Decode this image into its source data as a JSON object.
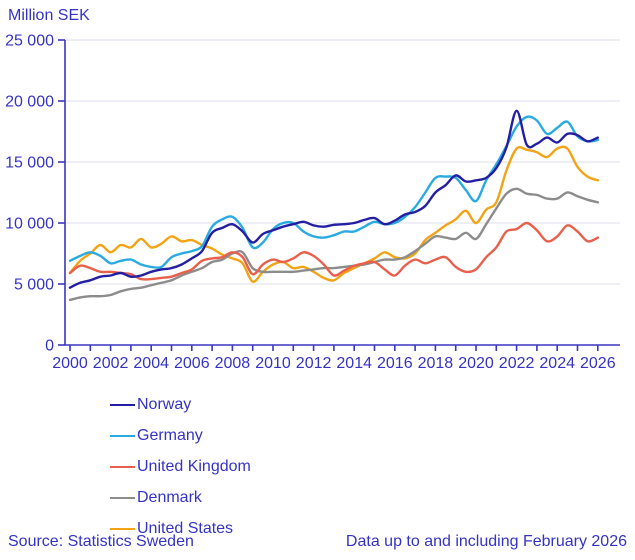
{
  "title": "Million SEK",
  "footer": {
    "source": "Source: Statistics Sweden",
    "note": "Data up to and including February 2026"
  },
  "colors": {
    "text": "#3533C4",
    "axis": "#3A36C0",
    "gridline": "#DCDCEE"
  },
  "chart_data": {
    "type": "line",
    "title": "Million SEK",
    "ylabel": "Million SEK",
    "xlabel": "",
    "ylim": [
      0,
      25000
    ],
    "ytick_interval": 5000,
    "ytick_labels": [
      "0",
      "5 000",
      "10 000",
      "15 000",
      "20 000",
      "25 000"
    ],
    "xlim": [
      2000,
      2026
    ],
    "xtick_labels": [
      "2000",
      "2002",
      "2004",
      "2006",
      "2008",
      "2010",
      "2012",
      "2014",
      "2016",
      "2018",
      "2020",
      "2022",
      "2024",
      "2026"
    ],
    "grid": "horizontal",
    "legend_position": "bottom-left",
    "x": [
      2000,
      2000.5,
      2001,
      2001.5,
      2002,
      2002.5,
      2003,
      2003.5,
      2004,
      2004.5,
      2005,
      2005.5,
      2006,
      2006.5,
      2007,
      2007.5,
      2008,
      2008.5,
      2009,
      2009.5,
      2010,
      2010.5,
      2011,
      2011.5,
      2012,
      2012.5,
      2013,
      2013.5,
      2014,
      2014.5,
      2015,
      2015.5,
      2016,
      2016.5,
      2017,
      2017.5,
      2018,
      2018.5,
      2019,
      2019.5,
      2020,
      2020.5,
      2021,
      2021.5,
      2022,
      2022.5,
      2023,
      2023.5,
      2024,
      2024.5,
      2025,
      2025.5,
      2026
    ],
    "series": [
      {
        "name": "Norway",
        "color": "#241FA2",
        "values": [
          4700,
          5100,
          5300,
          5600,
          5700,
          5900,
          5600,
          5700,
          6000,
          6200,
          6300,
          6600,
          7100,
          7700,
          9200,
          9600,
          9900,
          9300,
          8400,
          9100,
          9400,
          9700,
          9900,
          10100,
          9800,
          9700,
          9850,
          9900,
          10000,
          10250,
          10400,
          9900,
          10200,
          10700,
          10900,
          11400,
          12500,
          13100,
          13900,
          13400,
          13500,
          13700,
          14500,
          16200,
          19200,
          16400,
          16500,
          17000,
          16600,
          17300,
          17200,
          16700,
          17000
        ]
      },
      {
        "name": "Germany",
        "color": "#29ABE2",
        "values": [
          6900,
          7300,
          7600,
          7300,
          6700,
          6900,
          7000,
          6600,
          6400,
          6400,
          7200,
          7500,
          7700,
          8100,
          9700,
          10300,
          10500,
          9600,
          8000,
          8400,
          9500,
          10000,
          10000,
          9300,
          8900,
          8800,
          9000,
          9300,
          9300,
          9700,
          10100,
          9900,
          10000,
          10500,
          11300,
          12500,
          13700,
          13800,
          13700,
          12700,
          11800,
          13500,
          14800,
          16300,
          17900,
          18700,
          18400,
          17300,
          17800,
          18300,
          17100,
          16700,
          16800
        ]
      },
      {
        "name": "United Kingdom",
        "color": "#E8604C",
        "values": [
          5900,
          6500,
          6300,
          6000,
          6000,
          5900,
          5800,
          5400,
          5400,
          5500,
          5600,
          5900,
          6200,
          6900,
          7100,
          7200,
          7600,
          7200,
          5800,
          6600,
          7000,
          6800,
          7100,
          7600,
          7300,
          6600,
          5700,
          6100,
          6500,
          6700,
          6800,
          6200,
          5700,
          6500,
          7000,
          6700,
          7000,
          7200,
          6400,
          6000,
          6200,
          7200,
          8000,
          9300,
          9500,
          10000,
          9400,
          8500,
          8900,
          9800,
          9300,
          8500,
          8800
        ]
      },
      {
        "name": "Denmark",
        "color": "#8C8C8C",
        "values": [
          3700,
          3900,
          4000,
          4000,
          4100,
          4400,
          4600,
          4700,
          4900,
          5100,
          5300,
          5700,
          6000,
          6300,
          6800,
          7000,
          7500,
          7600,
          6300,
          6000,
          6000,
          6000,
          6000,
          6100,
          6200,
          6300,
          6300,
          6400,
          6500,
          6600,
          6800,
          7000,
          7000,
          7200,
          7700,
          8300,
          8900,
          8800,
          8700,
          9200,
          8700,
          9900,
          11200,
          12400,
          12800,
          12400,
          12300,
          12000,
          12000,
          12500,
          12200,
          11900,
          11700
        ]
      },
      {
        "name": "United States",
        "color": "#F2A416",
        "values": [
          5900,
          6900,
          7500,
          8200,
          7600,
          8200,
          8000,
          8700,
          8000,
          8300,
          8900,
          8500,
          8600,
          8200,
          7900,
          7400,
          7100,
          6700,
          5200,
          6000,
          6600,
          6800,
          6300,
          6400,
          6000,
          5500,
          5300,
          5900,
          6300,
          6700,
          7100,
          7600,
          7200,
          7100,
          7500,
          8600,
          9200,
          9800,
          10300,
          11000,
          10000,
          11100,
          11700,
          14300,
          16100,
          16000,
          15800,
          15400,
          16100,
          16100,
          14600,
          13800,
          13500
        ]
      }
    ]
  }
}
